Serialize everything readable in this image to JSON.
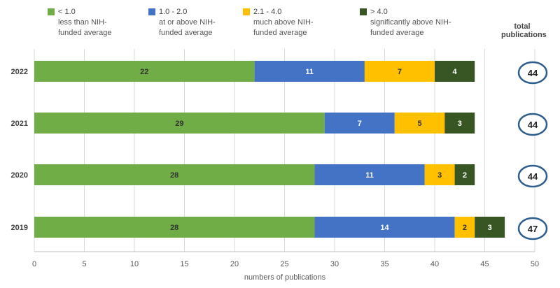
{
  "chart_data": {
    "type": "bar",
    "orientation": "horizontal",
    "stacked": true,
    "categories": [
      "2022",
      "2021",
      "2020",
      "2019"
    ],
    "series": [
      {
        "name": "< 1.0",
        "description": [
          "less than NIH-",
          "funded average"
        ],
        "color": "#70ad47",
        "label_color": "#333333",
        "values": [
          22,
          29,
          28,
          28
        ]
      },
      {
        "name": "1.0 - 2.0",
        "description": [
          "at or above NIH-",
          "funded average"
        ],
        "color": "#4472c4",
        "label_color": "#ffffff",
        "values": [
          11,
          7,
          11,
          14
        ]
      },
      {
        "name": "2.1 - 4.0",
        "description": [
          "much above NIH-",
          "funded average"
        ],
        "color": "#ffc000",
        "label_color": "#333333",
        "values": [
          7,
          5,
          3,
          2
        ]
      },
      {
        "name": "> 4.0",
        "description": [
          "significantly above NIH-",
          "funded average"
        ],
        "color": "#375623",
        "label_color": "#ffffff",
        "values": [
          4,
          3,
          2,
          3
        ]
      }
    ],
    "totals_header": [
      "total",
      "publications"
    ],
    "totals": [
      44,
      44,
      44,
      47
    ],
    "xlabel": "numbers of publications",
    "xlim": [
      0,
      50
    ],
    "xticks": [
      0,
      5,
      10,
      15,
      20,
      25,
      30,
      35,
      40,
      45,
      50
    ],
    "grid": true,
    "legend_position": "top"
  }
}
